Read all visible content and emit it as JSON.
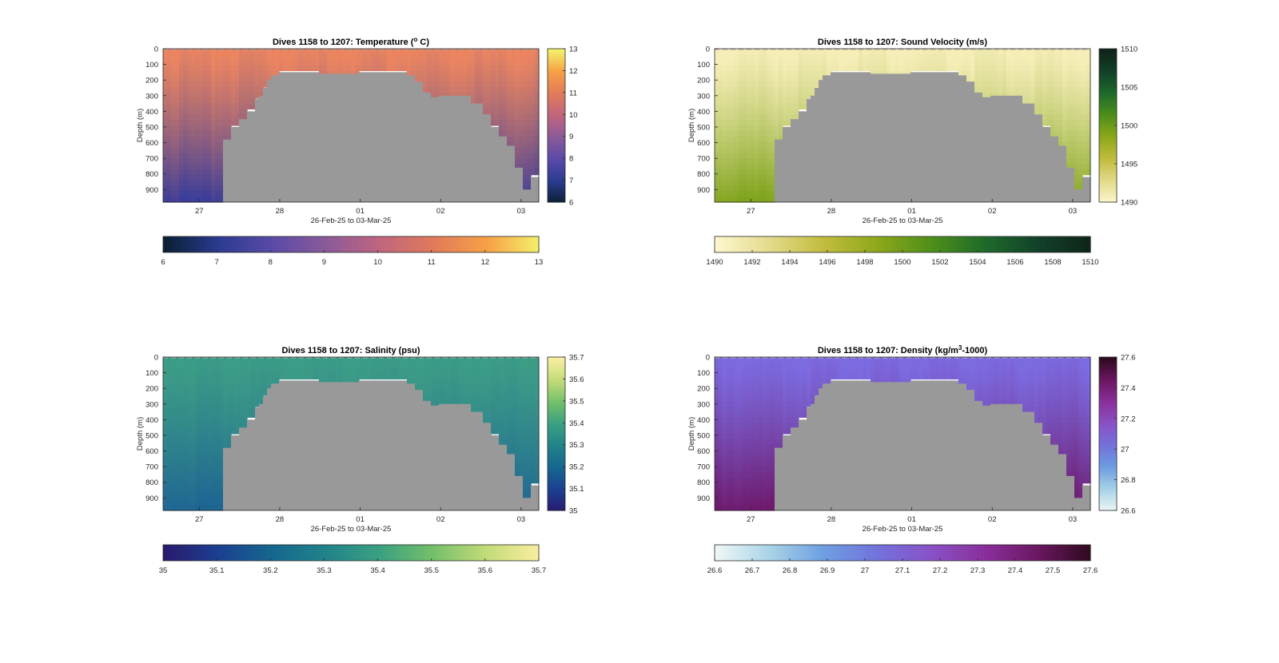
{
  "figure": {
    "panels": [
      {
        "title_prefix": "Dives 1158 to 1207: ",
        "title_main": "Temperature (",
        "title_sup": "o",
        "title_suffix": " C)",
        "ylabel": "Depth (m)",
        "xlabel": "26-Feb-25 to 03-Mar-25",
        "colorbar_ticks": [
          "6",
          "7",
          "8",
          "9",
          "10",
          "11",
          "12",
          "13"
        ],
        "hbar_ticks": [
          "6",
          "7",
          "8",
          "9",
          "10",
          "11",
          "12",
          "13"
        ],
        "colormap": [
          "#0a1f33",
          "#2a3b8f",
          "#5a4aa8",
          "#8a5a9a",
          "#c0657e",
          "#e07a5a",
          "#f7a046",
          "#f2f26a"
        ],
        "shallow_color": "#eb8560",
        "deep_color": "#3b3d99"
      },
      {
        "title_prefix": "Dives 1158 to 1207: ",
        "title_main": "Sound Velocity (m/s)",
        "title_sup": "",
        "title_suffix": "",
        "ylabel": "Depth (m)",
        "xlabel": "26-Feb-25 to 03-Mar-25",
        "colorbar_ticks": [
          "1490",
          "1495",
          "1500",
          "1505",
          "1510"
        ],
        "hbar_ticks": [
          "1490",
          "1492",
          "1494",
          "1496",
          "1498",
          "1500",
          "1502",
          "1504",
          "1506",
          "1508",
          "1510"
        ],
        "colormap": [
          "#fdf7cf",
          "#e3da8c",
          "#c2bc3e",
          "#8ea81a",
          "#4f8f1a",
          "#1f6b2a",
          "#12402a",
          "#0f2418"
        ],
        "shallow_color": "#f6eeb8",
        "deep_color": "#7fa31c"
      },
      {
        "title_prefix": "Dives 1158 to 1207: ",
        "title_main": "Salinity (psu)",
        "title_sup": "",
        "title_suffix": "",
        "ylabel": "Depth (m)",
        "xlabel": "26-Feb-25 to 03-Mar-25",
        "colorbar_ticks": [
          "35",
          "35.1",
          "35.2",
          "35.3",
          "35.4",
          "35.5",
          "35.6",
          "35.7"
        ],
        "hbar_ticks": [
          "35",
          "35.1",
          "35.2",
          "35.3",
          "35.4",
          "35.5",
          "35.6",
          "35.7"
        ],
        "colormap": [
          "#2a1a6e",
          "#1c3f91",
          "#15678f",
          "#21838a",
          "#3aa081",
          "#74bf6a",
          "#c3dc78",
          "#fbeea0"
        ],
        "shallow_color": "#3c9d86",
        "deep_color": "#1f6592"
      },
      {
        "title_prefix": "Dives 1158 to 1207: ",
        "title_main": "Density (kg/m",
        "title_sup": "3",
        "title_suffix": "-1000)",
        "ylabel": "Depth (m)",
        "xlabel": "26-Feb-25 to 03-Mar-25",
        "colorbar_ticks": [
          "26.6",
          "26.8",
          "27",
          "27.2",
          "27.4",
          "27.6"
        ],
        "hbar_ticks": [
          "26.6",
          "26.7",
          "26.8",
          "26.9",
          "27",
          "27.1",
          "27.2",
          "27.3",
          "27.4",
          "27.5",
          "27.6"
        ],
        "colormap": [
          "#eef6f6",
          "#a9d3e6",
          "#6d9fe2",
          "#7272db",
          "#8a52c7",
          "#8a2f9c",
          "#6a1760",
          "#2d0a1d"
        ],
        "shallow_color": "#7c6be0",
        "deep_color": "#6e1a6c"
      }
    ]
  },
  "chart_data": [
    {
      "type": "heatmap",
      "title": "Dives 1158 to 1207: Temperature (o C)",
      "xlabel": "26-Feb-25 to 03-Mar-25",
      "ylabel": "Depth (m)",
      "x_tick_labels": [
        "27",
        "28",
        "01",
        "02",
        "03"
      ],
      "y_tick_labels": [
        "0",
        "100",
        "200",
        "300",
        "400",
        "500",
        "600",
        "700",
        "800",
        "900"
      ],
      "ylim": [
        0,
        980
      ],
      "y_reversed": true,
      "colorbar_range": [
        6,
        13
      ],
      "grid": false
    },
    {
      "type": "heatmap",
      "title": "Dives 1158 to 1207: Sound Velocity (m/s)",
      "xlabel": "26-Feb-25 to 03-Mar-25",
      "ylabel": "Depth (m)",
      "x_tick_labels": [
        "27",
        "28",
        "01",
        "02",
        "03"
      ],
      "y_tick_labels": [
        "0",
        "100",
        "200",
        "300",
        "400",
        "500",
        "600",
        "700",
        "800",
        "900"
      ],
      "ylim": [
        0,
        980
      ],
      "y_reversed": true,
      "colorbar_range": [
        1490,
        1510
      ],
      "grid": false
    },
    {
      "type": "heatmap",
      "title": "Dives 1158 to 1207: Salinity (psu)",
      "xlabel": "26-Feb-25 to 03-Mar-25",
      "ylabel": "Depth (m)",
      "x_tick_labels": [
        "27",
        "28",
        "01",
        "02",
        "03"
      ],
      "y_tick_labels": [
        "0",
        "100",
        "200",
        "300",
        "400",
        "500",
        "600",
        "700",
        "800",
        "900"
      ],
      "ylim": [
        0,
        980
      ],
      "y_reversed": true,
      "colorbar_range": [
        35,
        35.7
      ],
      "grid": false
    },
    {
      "type": "heatmap",
      "title": "Dives 1158 to 1207: Density (kg/m3-1000)",
      "xlabel": "26-Feb-25 to 03-Mar-25",
      "ylabel": "Depth (m)",
      "x_tick_labels": [
        "27",
        "28",
        "01",
        "02",
        "03"
      ],
      "y_tick_labels": [
        "0",
        "100",
        "200",
        "300",
        "400",
        "500",
        "600",
        "700",
        "800",
        "900"
      ],
      "ylim": [
        0,
        980
      ],
      "y_reversed": true,
      "colorbar_range": [
        26.6,
        27.6
      ],
      "grid": false
    }
  ],
  "bathymetry": {
    "note_color": "#999999",
    "bottom_depth_profile": [
      [
        27.3,
        580
      ],
      [
        27.4,
        500
      ],
      [
        27.5,
        450
      ],
      [
        27.6,
        400
      ],
      [
        27.7,
        320
      ],
      [
        27.75,
        300
      ],
      [
        27.8,
        250
      ],
      [
        27.85,
        200
      ],
      [
        27.9,
        170
      ],
      [
        28.0,
        150
      ],
      [
        28.5,
        160
      ],
      [
        29.0,
        150
      ],
      [
        29.5,
        150
      ],
      [
        29.6,
        170
      ],
      [
        29.7,
        210
      ],
      [
        29.8,
        280
      ],
      [
        29.9,
        310
      ],
      [
        30.0,
        300
      ],
      [
        30.3,
        300
      ],
      [
        30.4,
        350
      ],
      [
        30.5,
        420
      ],
      [
        30.6,
        500
      ],
      [
        30.7,
        560
      ],
      [
        30.8,
        620
      ],
      [
        30.9,
        660
      ],
      [
        30.93,
        760
      ],
      [
        31.0,
        900
      ],
      [
        31.1,
        820
      ],
      [
        31.2,
        980
      ]
    ]
  }
}
